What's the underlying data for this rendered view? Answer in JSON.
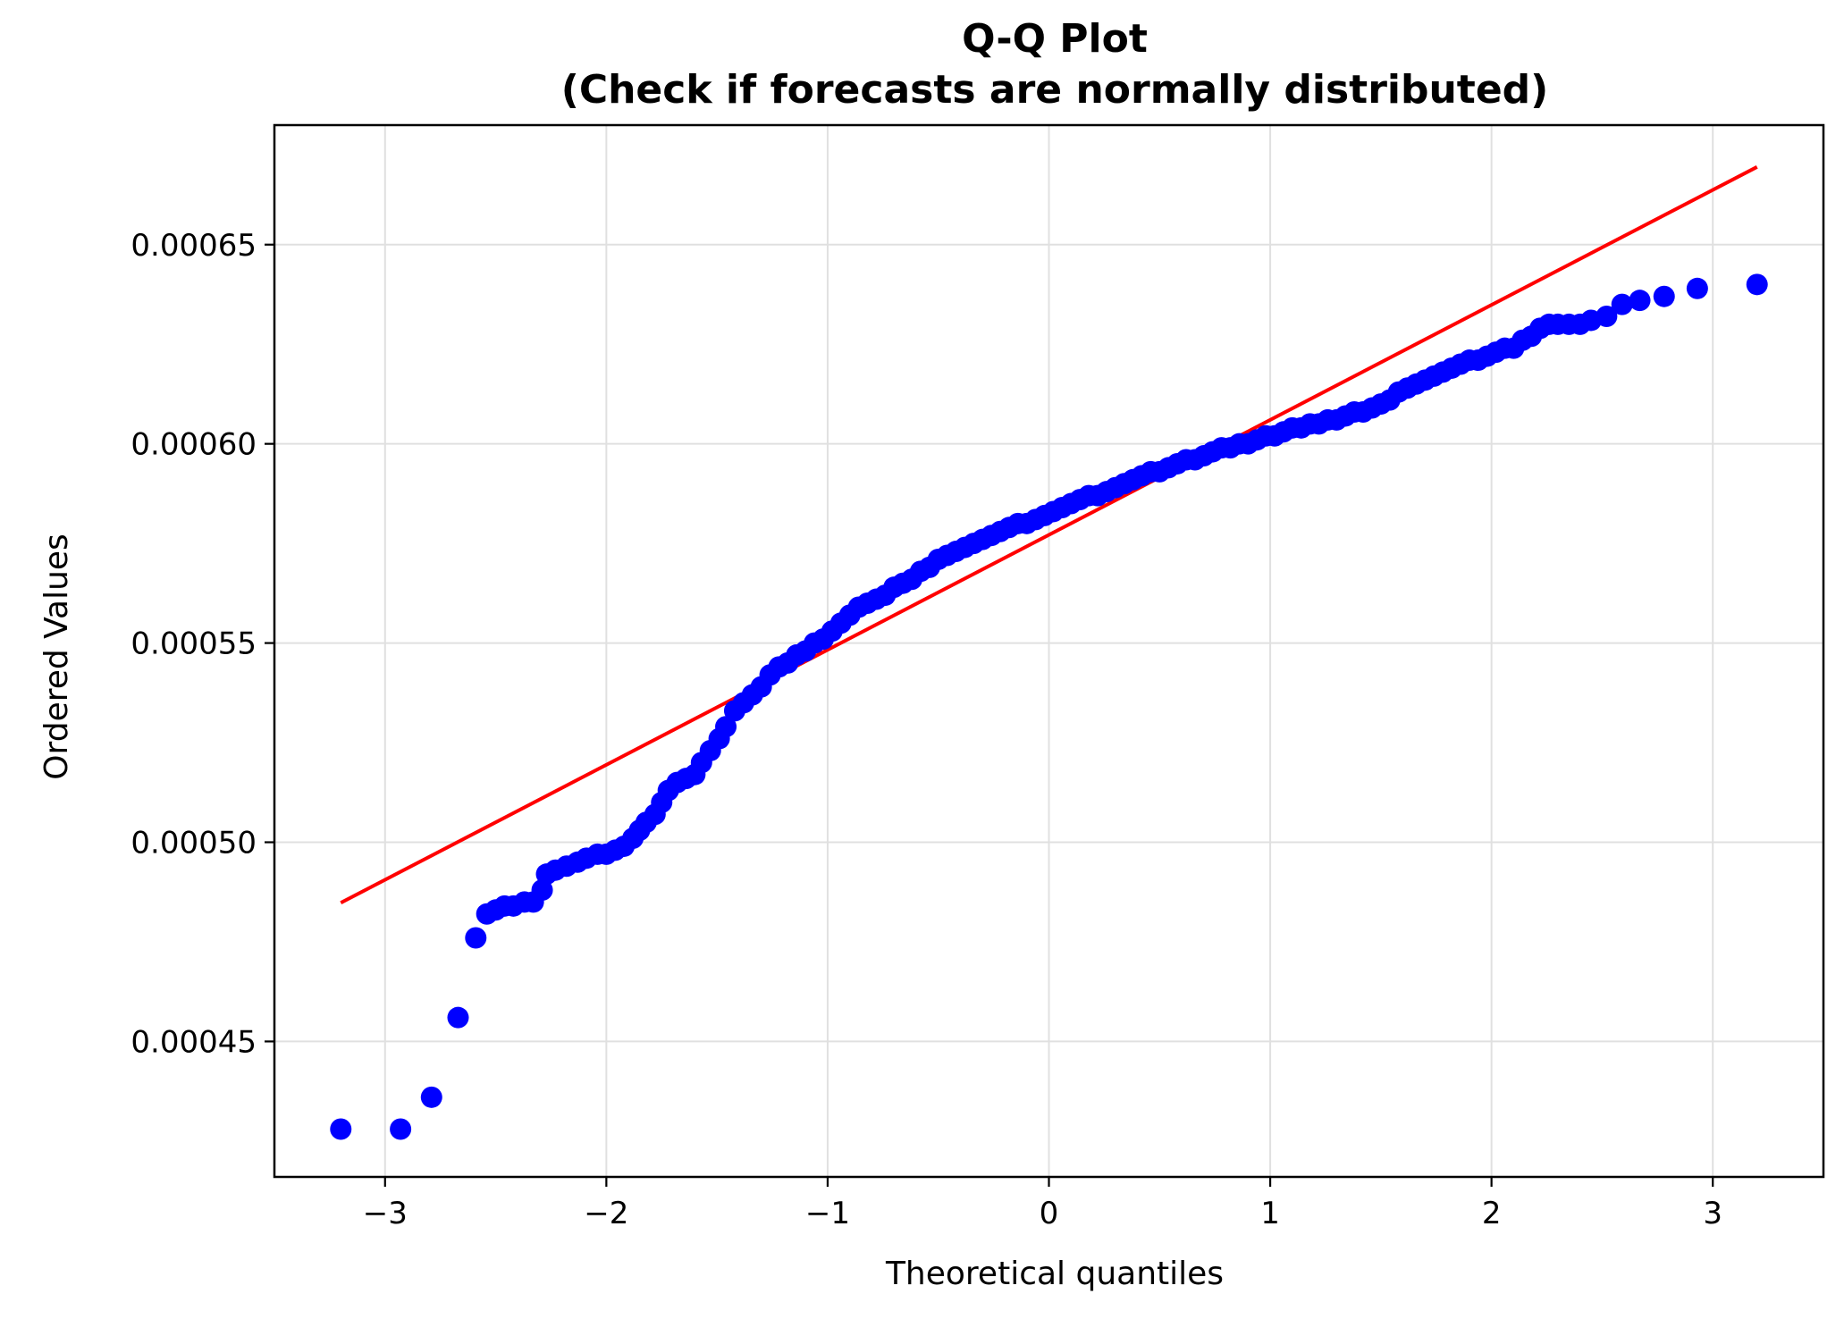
{
  "chart_data": {
    "type": "scatter",
    "title": "Q-Q Plot",
    "subtitle": "(Check if forecasts are normally distributed)",
    "xlabel": "Theoretical quantiles",
    "ylabel": "Ordered Values",
    "xlim": [
      -3.5,
      3.5
    ],
    "ylim": [
      0.000416,
      0.00068
    ],
    "xticks": [
      -3,
      -2,
      -1,
      0,
      1,
      2,
      3
    ],
    "xtick_labels": [
      "−3",
      "−2",
      "−1",
      "0",
      "1",
      "2",
      "3"
    ],
    "yticks": [
      0.00045,
      0.0005,
      0.00055,
      0.0006,
      0.00065
    ],
    "ytick_labels": [
      "0.00045",
      "0.00050",
      "0.00055",
      "0.00060",
      "0.00065"
    ],
    "grid": true,
    "colors": {
      "points": "#0000ff",
      "fit_line": "#ff0000",
      "grid": "#e0e0e0",
      "frame": "#000000"
    },
    "series": [
      {
        "kind": "points",
        "points": [
          [
            -3.2,
            0.000428
          ],
          [
            -2.93,
            0.000428
          ],
          [
            -2.79,
            0.000436
          ],
          [
            -2.67,
            0.000456
          ],
          [
            -2.59,
            0.000476
          ],
          [
            -2.54,
            0.000482
          ],
          [
            -2.5,
            0.000483
          ],
          [
            -2.46,
            0.000484
          ],
          [
            -2.42,
            0.000484
          ],
          [
            -2.37,
            0.000485
          ],
          [
            -2.33,
            0.000485
          ],
          [
            -2.29,
            0.000488
          ],
          [
            -2.27,
            0.000492
          ],
          [
            -2.23,
            0.000493
          ],
          [
            -2.18,
            0.000494
          ],
          [
            -2.13,
            0.000495
          ],
          [
            -2.09,
            0.000496
          ],
          [
            -2.04,
            0.000497
          ],
          [
            -2.0,
            0.000497
          ],
          [
            -1.96,
            0.000498
          ],
          [
            -1.92,
            0.000499
          ],
          [
            -1.88,
            0.000501
          ],
          [
            -1.85,
            0.000503
          ],
          [
            -1.82,
            0.000505
          ],
          [
            -1.78,
            0.000507
          ],
          [
            -1.75,
            0.00051
          ],
          [
            -1.72,
            0.000513
          ],
          [
            -1.68,
            0.000515
          ],
          [
            -1.64,
            0.000516
          ],
          [
            -1.6,
            0.000517
          ],
          [
            -1.57,
            0.00052
          ],
          [
            -1.53,
            0.000523
          ],
          [
            -1.49,
            0.000526
          ],
          [
            -1.46,
            0.000529
          ],
          [
            -1.42,
            0.000533
          ],
          [
            -1.38,
            0.000535
          ],
          [
            -1.34,
            0.000537
          ],
          [
            -1.3,
            0.000539
          ],
          [
            -1.26,
            0.000542
          ],
          [
            -1.22,
            0.000544
          ],
          [
            -1.18,
            0.000545
          ],
          [
            -1.14,
            0.000547
          ],
          [
            -1.1,
            0.000548
          ],
          [
            -1.06,
            0.00055
          ],
          [
            -1.02,
            0.000551
          ],
          [
            -0.98,
            0.000553
          ],
          [
            -0.94,
            0.000555
          ],
          [
            -0.9,
            0.000557
          ],
          [
            -0.86,
            0.000559
          ],
          [
            -0.82,
            0.00056
          ],
          [
            -0.78,
            0.000561
          ],
          [
            -0.74,
            0.000562
          ],
          [
            -0.7,
            0.000564
          ],
          [
            -0.66,
            0.000565
          ],
          [
            -0.62,
            0.000566
          ],
          [
            -0.58,
            0.000568
          ],
          [
            -0.54,
            0.000569
          ],
          [
            -0.5,
            0.000571
          ],
          [
            -0.46,
            0.000572
          ],
          [
            -0.42,
            0.000573
          ],
          [
            -0.38,
            0.000574
          ],
          [
            -0.34,
            0.000575
          ],
          [
            -0.3,
            0.000576
          ],
          [
            -0.26,
            0.000577
          ],
          [
            -0.22,
            0.000578
          ],
          [
            -0.18,
            0.000579
          ],
          [
            -0.14,
            0.00058
          ],
          [
            -0.1,
            0.00058
          ],
          [
            -0.06,
            0.000581
          ],
          [
            -0.02,
            0.000582
          ],
          [
            0.02,
            0.000583
          ],
          [
            0.06,
            0.000584
          ],
          [
            0.1,
            0.000585
          ],
          [
            0.14,
            0.000586
          ],
          [
            0.18,
            0.000587
          ],
          [
            0.22,
            0.000587
          ],
          [
            0.26,
            0.000588
          ],
          [
            0.3,
            0.000589
          ],
          [
            0.34,
            0.00059
          ],
          [
            0.38,
            0.000591
          ],
          [
            0.42,
            0.000592
          ],
          [
            0.46,
            0.000593
          ],
          [
            0.5,
            0.000593
          ],
          [
            0.54,
            0.000594
          ],
          [
            0.58,
            0.000595
          ],
          [
            0.62,
            0.000596
          ],
          [
            0.66,
            0.000596
          ],
          [
            0.7,
            0.000597
          ],
          [
            0.74,
            0.000598
          ],
          [
            0.78,
            0.000599
          ],
          [
            0.82,
            0.000599
          ],
          [
            0.86,
            0.0006
          ],
          [
            0.9,
            0.0006
          ],
          [
            0.94,
            0.000601
          ],
          [
            0.98,
            0.000602
          ],
          [
            1.02,
            0.000602
          ],
          [
            1.06,
            0.000603
          ],
          [
            1.1,
            0.000604
          ],
          [
            1.14,
            0.000604
          ],
          [
            1.18,
            0.000605
          ],
          [
            1.22,
            0.000605
          ],
          [
            1.26,
            0.000606
          ],
          [
            1.3,
            0.000606
          ],
          [
            1.34,
            0.000607
          ],
          [
            1.38,
            0.000608
          ],
          [
            1.42,
            0.000608
          ],
          [
            1.46,
            0.000609
          ],
          [
            1.5,
            0.00061
          ],
          [
            1.54,
            0.000611
          ],
          [
            1.58,
            0.000613
          ],
          [
            1.62,
            0.000614
          ],
          [
            1.66,
            0.000615
          ],
          [
            1.7,
            0.000616
          ],
          [
            1.74,
            0.000617
          ],
          [
            1.78,
            0.000618
          ],
          [
            1.82,
            0.000619
          ],
          [
            1.86,
            0.00062
          ],
          [
            1.9,
            0.000621
          ],
          [
            1.94,
            0.000621
          ],
          [
            1.98,
            0.000622
          ],
          [
            2.02,
            0.000623
          ],
          [
            2.06,
            0.000624
          ],
          [
            2.1,
            0.000624
          ],
          [
            2.14,
            0.000626
          ],
          [
            2.18,
            0.000627
          ],
          [
            2.22,
            0.000629
          ],
          [
            2.26,
            0.00063
          ],
          [
            2.3,
            0.00063
          ],
          [
            2.35,
            0.00063
          ],
          [
            2.4,
            0.00063
          ],
          [
            2.45,
            0.000631
          ],
          [
            2.52,
            0.000632
          ],
          [
            2.59,
            0.000635
          ],
          [
            2.67,
            0.000636
          ],
          [
            2.78,
            0.000637
          ],
          [
            2.93,
            0.000639
          ],
          [
            3.2,
            0.00064
          ]
        ]
      },
      {
        "kind": "fit_line",
        "points": [
          [
            -3.2,
            0.0004848
          ],
          [
            3.2,
            0.0006695
          ]
        ]
      }
    ]
  }
}
